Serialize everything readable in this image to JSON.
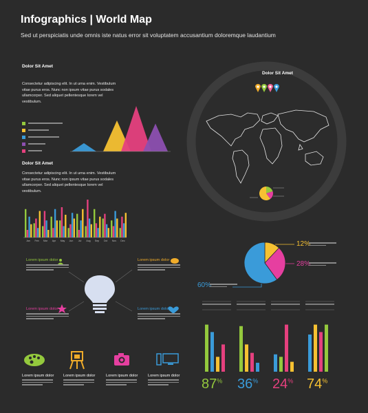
{
  "header": {
    "title": "Infographics | World Map",
    "subtitle": "Sed ut perspiciatis unde omnis iste natus error sit voluptatem accusantium doloremque laudantium"
  },
  "section1": {
    "heading": "Dolor Sit Amet",
    "paragraph": "Consectetur adipiscing elit. In ut urna enim. Vestibulum vitae purus eros. Nunc non ipsum vitae purus sodales ullamcorper. Sed aliquet pellentesque lorem vel vestibulum."
  },
  "section2": {
    "heading": "Dolor Sit Amet",
    "paragraph": "Consectetur adipiscing elit. In ut urna enim. Vestibulum vitae purus eros. Nunc non ipsum vitae purus sodales ullamcorper. Sed aliquet pellentesque lorem vel vestibulum."
  },
  "map": {
    "heading": "Dolor Sit Amet",
    "pins": [
      "#f0ac2a",
      "#94c93d",
      "#f06595",
      "#3a9bd9"
    ]
  },
  "colors": {
    "bg": "#2b2b2b",
    "blue": "#3a9bd9",
    "yellow": "#f6c132",
    "pink": "#e5407e",
    "purple": "#8c4fb0",
    "green": "#94c93d",
    "orange": "#f0ac2a",
    "magenta": "#e63fa0"
  },
  "pie_chart": {
    "labels": [
      "12%",
      "28%",
      "60%"
    ]
  },
  "bulb_items": [
    {
      "label": "Lorem ipsum dolor",
      "color": "#94c93d"
    },
    {
      "label": "Lorem ipsum dolor",
      "color": "#f0ac2a"
    },
    {
      "label": "Lorem ipsum dolor",
      "color": "#e63fa0"
    },
    {
      "label": "Lorem ipsum dolor",
      "color": "#3a9bd9"
    }
  ],
  "icon_items": [
    {
      "label": "Lorem ipsum dolor",
      "icon": "palette-icon"
    },
    {
      "label": "Lorem ipsum dolor",
      "icon": "easel-icon"
    },
    {
      "label": "Lorem ipsum dolor",
      "icon": "camera-icon"
    },
    {
      "label": "Lorem ipsum dolor",
      "icon": "computer-icon"
    }
  ],
  "stats": [
    {
      "value": "87",
      "unit": "%",
      "color": "#94c93d"
    },
    {
      "value": "36",
      "unit": "%",
      "color": "#3a9bd9"
    },
    {
      "value": "24",
      "unit": "%",
      "color": "#e5407e"
    },
    {
      "value": "74",
      "unit": "%",
      "color": "#f6c132"
    }
  ],
  "chart_data": [
    {
      "type": "area",
      "title": "",
      "series": [
        {
          "value": 8,
          "color": "#3a9bd9"
        },
        {
          "value": 30,
          "color": "#f6c132"
        },
        {
          "value": 44,
          "color": "#e5407e"
        },
        {
          "value": 27,
          "color": "#8c4fb0"
        }
      ]
    },
    {
      "type": "bar",
      "title": "",
      "categories": [
        "Jan",
        "Feb",
        "Mar",
        "Apr",
        "May",
        "Jun",
        "Jul",
        "Aug",
        "Sep",
        "Oct",
        "Nov",
        "Dec"
      ],
      "series": [
        {
          "color": "#94c93d",
          "values": [
            30,
            15,
            12,
            22,
            18,
            10,
            25,
            12,
            30,
            20,
            18,
            10
          ]
        },
        {
          "color": "#e5407e",
          "values": [
            8,
            20,
            28,
            10,
            32,
            14,
            8,
            40,
            15,
            25,
            12,
            22
          ]
        },
        {
          "color": "#3a9bd9",
          "values": [
            22,
            10,
            18,
            30,
            12,
            26,
            18,
            20,
            10,
            14,
            28,
            15
          ]
        },
        {
          "color": "#f6c132",
          "values": [
            14,
            28,
            8,
            18,
            24,
            20,
            30,
            14,
            22,
            10,
            20,
            26
          ]
        }
      ]
    },
    {
      "type": "pie",
      "series": [
        {
          "value": 12,
          "color": "#f6c132"
        },
        {
          "value": 28,
          "color": "#e63fa0"
        },
        {
          "value": 60,
          "color": "#3a9bd9"
        }
      ]
    },
    {
      "type": "bar",
      "title": "",
      "groups": [
        {
          "values": [
            95,
            80,
            30,
            55
          ],
          "colors": [
            "#94c93d",
            "#3a9bd9",
            "#f6c132",
            "#e5407e"
          ]
        },
        {
          "values": [
            92,
            55,
            38,
            18
          ],
          "colors": [
            "#94c93d",
            "#f6c132",
            "#e5407e",
            "#3a9bd9"
          ]
        },
        {
          "values": [
            35,
            30,
            95,
            20
          ],
          "colors": [
            "#3a9bd9",
            "#94c93d",
            "#e5407e",
            "#f6c132"
          ]
        },
        {
          "values": [
            75,
            95,
            80,
            95
          ],
          "colors": [
            "#3a9bd9",
            "#f6c132",
            "#e5407e",
            "#94c93d"
          ]
        }
      ]
    }
  ]
}
